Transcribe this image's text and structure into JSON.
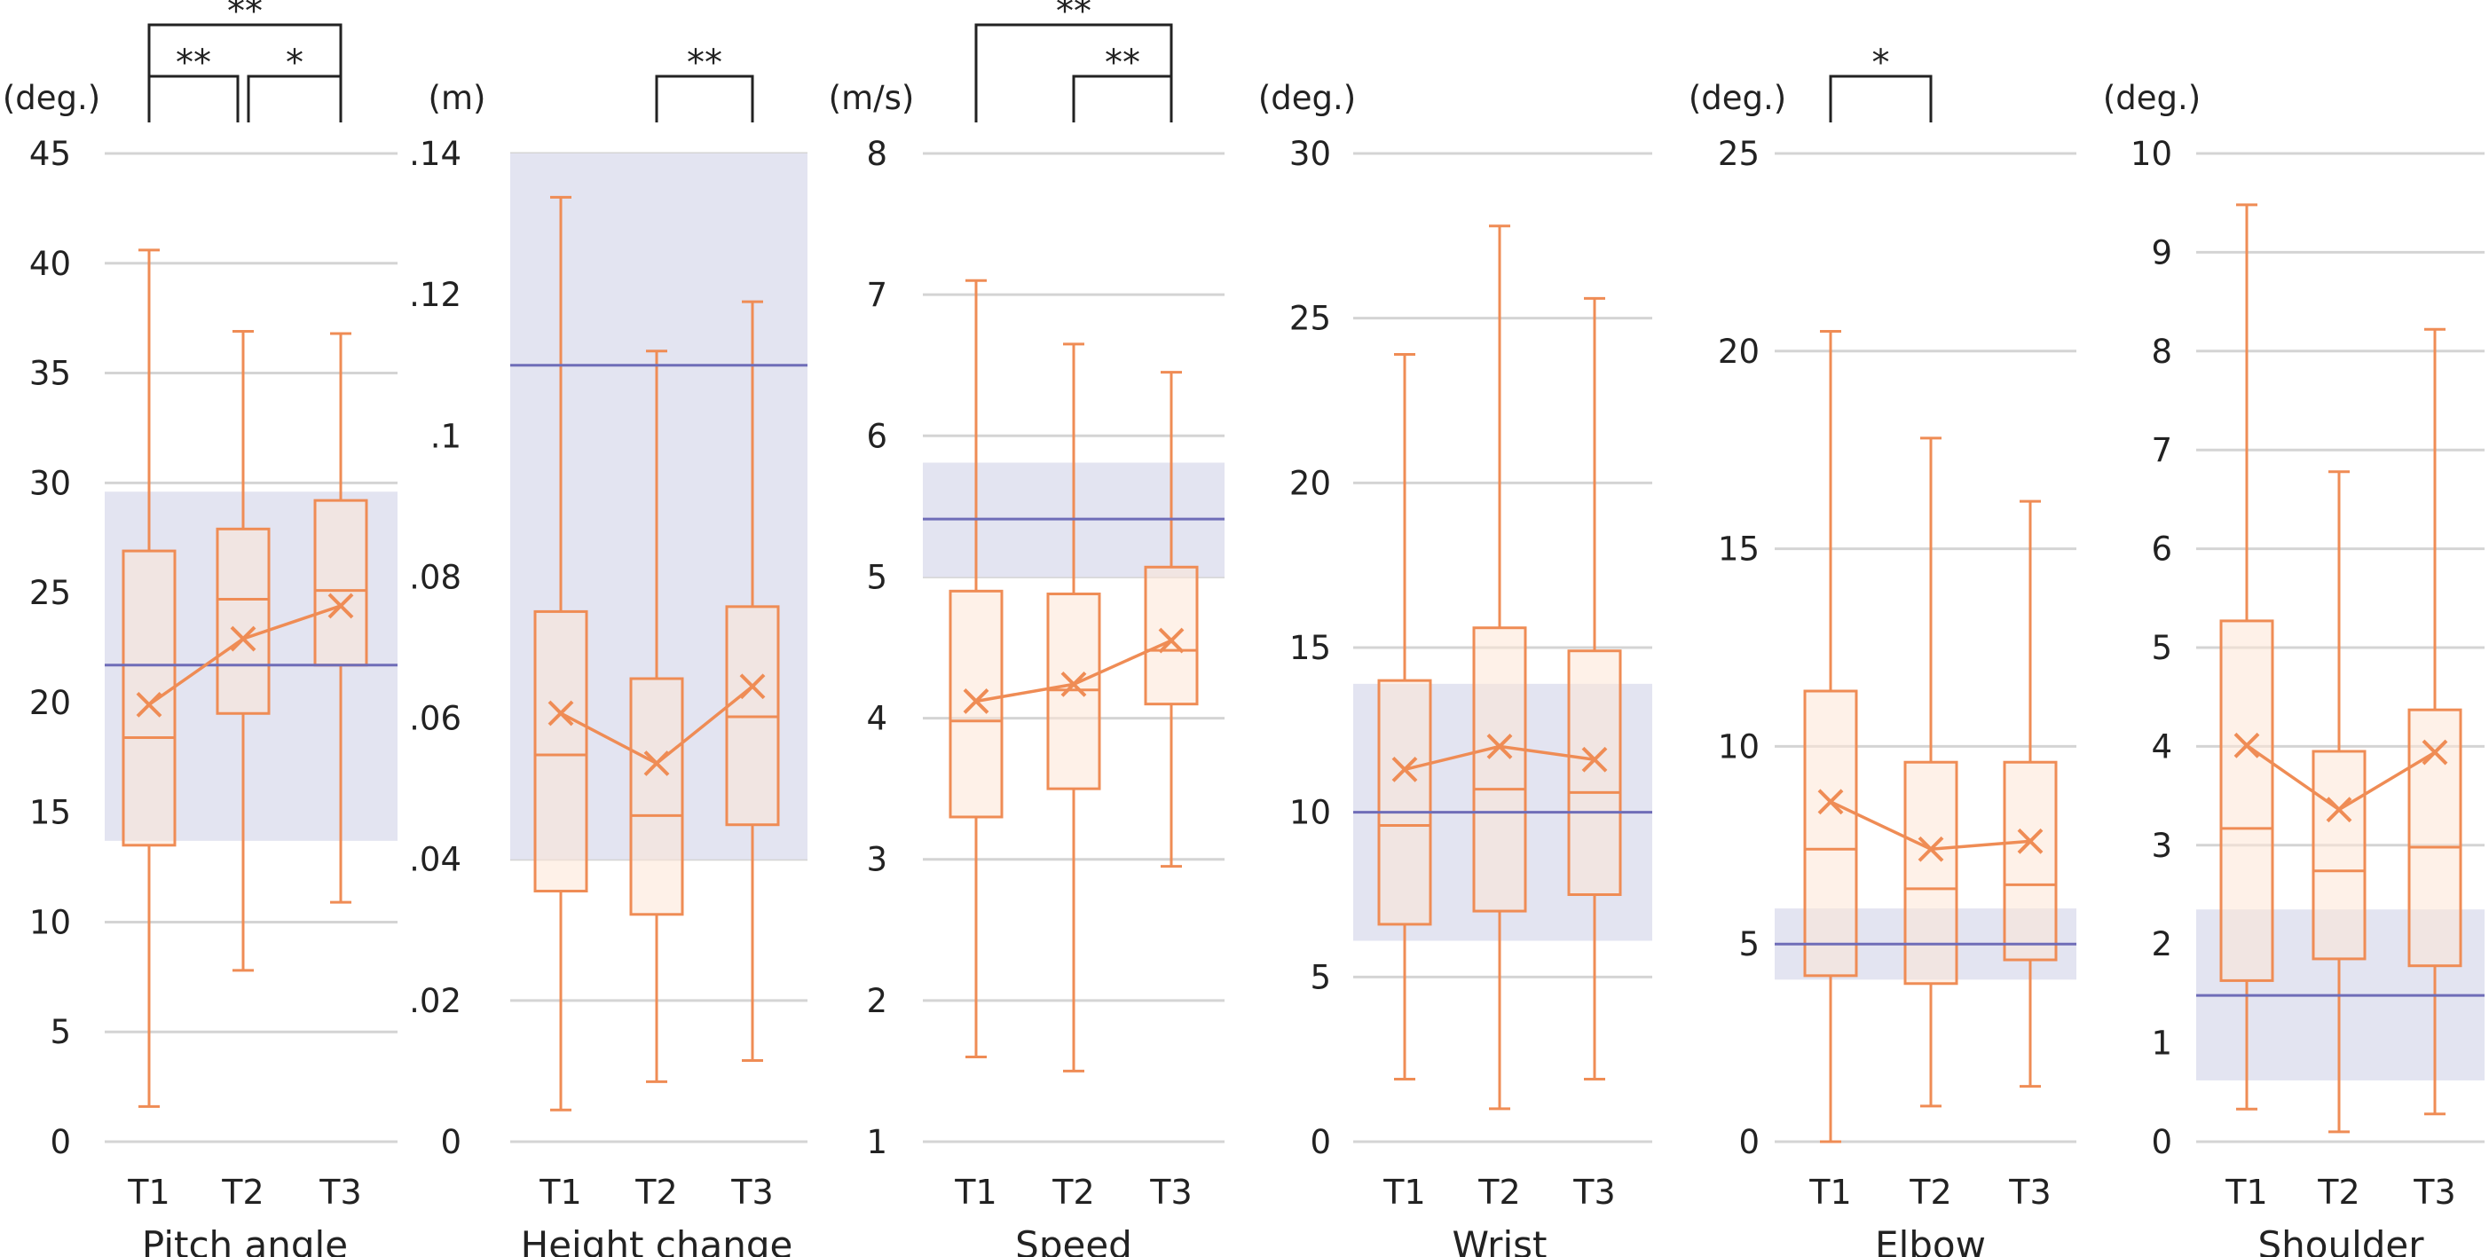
{
  "chart_data": [
    {
      "type": "box",
      "title": "Pitch angle",
      "unit": "(deg.)",
      "ylim": [
        0,
        45
      ],
      "ticks": [
        0,
        5,
        10,
        15,
        20,
        25,
        30,
        35,
        40,
        45
      ],
      "tick_labels": [
        "0",
        "5",
        "10",
        "15",
        "20",
        "25",
        "30",
        "35",
        "40",
        "45"
      ],
      "categories": [
        "T1",
        "T2",
        "T3"
      ],
      "boxes": [
        {
          "min": 1.6,
          "q1": 13.5,
          "median": 18.4,
          "q3": 26.9,
          "max": 40.6,
          "mean": 19.9
        },
        {
          "min": 7.8,
          "q1": 19.5,
          "median": 24.7,
          "q3": 27.9,
          "max": 36.9,
          "mean": 22.9
        },
        {
          "min": 10.9,
          "q1": 21.7,
          "median": 25.1,
          "q3": 29.2,
          "max": 36.8,
          "mean": 24.4
        }
      ],
      "reference": {
        "mean": 21.7,
        "low": 13.7,
        "high": 29.6
      },
      "significance": [
        {
          "from": 0,
          "to": 2,
          "label": "**"
        },
        {
          "from": 0,
          "to": 1,
          "label": "**"
        },
        {
          "from": 1,
          "to": 2,
          "label": "*"
        }
      ]
    },
    {
      "type": "box",
      "title": "Height change",
      "unit": "(m)",
      "ylim": [
        0,
        0.14
      ],
      "ticks": [
        0,
        0.02,
        0.04,
        0.06,
        0.08,
        0.1,
        0.12,
        0.14
      ],
      "tick_labels": [
        "0",
        ".02",
        ".04",
        ".06",
        ".08",
        ".1",
        ".12",
        ".14"
      ],
      "categories": [
        "T1",
        "T2",
        "T3"
      ],
      "boxes": [
        {
          "min": 0.0045,
          "q1": 0.0355,
          "median": 0.0548,
          "q3": 0.0751,
          "max": 0.1338,
          "mean": 0.0607
        },
        {
          "min": 0.0085,
          "q1": 0.0322,
          "median": 0.0462,
          "q3": 0.0656,
          "max": 0.112,
          "mean": 0.0536
        },
        {
          "min": 0.0115,
          "q1": 0.0449,
          "median": 0.0602,
          "q3": 0.0758,
          "max": 0.119,
          "mean": 0.0645
        }
      ],
      "reference": {
        "mean": 0.11,
        "low": 0.04,
        "high": 0.14
      },
      "significance": [
        {
          "from": 1,
          "to": 2,
          "label": "**"
        }
      ]
    },
    {
      "type": "box",
      "title": "Speed",
      "unit": "(m/s)",
      "ylim": [
        1,
        8
      ],
      "ticks": [
        1,
        2,
        3,
        4,
        5,
        6,
        7,
        8
      ],
      "tick_labels": [
        "1",
        "2",
        "3",
        "4",
        "5",
        "6",
        "7",
        "8"
      ],
      "categories": [
        "T1",
        "T2",
        "T3"
      ],
      "boxes": [
        {
          "min": 1.6,
          "q1": 3.3,
          "median": 3.98,
          "q3": 4.9,
          "max": 7.1,
          "mean": 4.12
        },
        {
          "min": 1.5,
          "q1": 3.5,
          "median": 4.2,
          "q3": 4.88,
          "max": 6.65,
          "mean": 4.24
        },
        {
          "min": 2.95,
          "q1": 4.1,
          "median": 4.48,
          "q3": 5.07,
          "max": 6.45,
          "mean": 4.55
        }
      ],
      "reference": {
        "mean": 5.41,
        "low": 5.0,
        "high": 5.81
      },
      "significance": [
        {
          "from": 0,
          "to": 2,
          "label": "**"
        },
        {
          "from": 1,
          "to": 2,
          "label": "**"
        }
      ]
    },
    {
      "type": "box",
      "title": "Wrist",
      "unit": "(deg.)",
      "ylim": [
        0,
        30
      ],
      "ticks": [
        0,
        5,
        10,
        15,
        20,
        25,
        30
      ],
      "tick_labels": [
        "0",
        "5",
        "10",
        "15",
        "20",
        "25",
        "30"
      ],
      "categories": [
        "T1",
        "T2",
        "T3"
      ],
      "boxes": [
        {
          "min": 1.9,
          "q1": 6.6,
          "median": 9.6,
          "q3": 14.0,
          "max": 23.9,
          "mean": 11.3
        },
        {
          "min": 1.0,
          "q1": 7.0,
          "median": 10.7,
          "q3": 15.6,
          "max": 27.8,
          "mean": 12.0
        },
        {
          "min": 1.9,
          "q1": 7.5,
          "median": 10.6,
          "q3": 14.9,
          "max": 25.6,
          "mean": 11.6
        }
      ],
      "reference": {
        "mean": 10.0,
        "low": 6.1,
        "high": 13.9
      },
      "significance": []
    },
    {
      "type": "box",
      "title": "Elbow",
      "unit": "(deg.)",
      "ylim": [
        0,
        25
      ],
      "ticks": [
        0,
        5,
        10,
        15,
        20,
        25
      ],
      "tick_labels": [
        "0",
        "5",
        "10",
        "15",
        "20",
        "25"
      ],
      "categories": [
        "T1",
        "T2",
        "T3"
      ],
      "boxes": [
        {
          "min": 0.0,
          "q1": 4.2,
          "median": 7.4,
          "q3": 11.4,
          "max": 20.5,
          "mean": 8.6
        },
        {
          "min": 0.9,
          "q1": 4.0,
          "median": 6.4,
          "q3": 9.6,
          "max": 17.8,
          "mean": 7.4
        },
        {
          "min": 1.4,
          "q1": 4.6,
          "median": 6.5,
          "q3": 9.6,
          "max": 16.2,
          "mean": 7.6
        }
      ],
      "reference": {
        "mean": 5.0,
        "low": 4.1,
        "high": 5.9
      },
      "significance": [
        {
          "from": 0,
          "to": 1,
          "label": "*"
        }
      ]
    },
    {
      "type": "box",
      "title": "Shoulder",
      "unit": "(deg.)",
      "ylim": [
        0,
        10
      ],
      "ticks": [
        0,
        1,
        2,
        3,
        4,
        5,
        6,
        7,
        8,
        9,
        10
      ],
      "tick_labels": [
        "0",
        "1",
        "2",
        "3",
        "4",
        "5",
        "6",
        "7",
        "8",
        "9",
        "10"
      ],
      "categories": [
        "T1",
        "T2",
        "T3"
      ],
      "boxes": [
        {
          "min": 0.33,
          "q1": 1.63,
          "median": 3.17,
          "q3": 5.27,
          "max": 9.48,
          "mean": 4.01
        },
        {
          "min": 0.1,
          "q1": 1.85,
          "median": 2.74,
          "q3": 3.95,
          "max": 6.78,
          "mean": 3.36
        },
        {
          "min": 0.28,
          "q1": 1.78,
          "median": 2.98,
          "q3": 4.37,
          "max": 8.22,
          "mean": 3.94
        }
      ],
      "reference": {
        "mean": 1.48,
        "low": 0.62,
        "high": 2.35
      },
      "significance": []
    }
  ],
  "colors": {
    "box_stroke": "#ef8c55",
    "box_fill": "#fde6d6",
    "band_fill": "#e3e4f1",
    "reference_line": "#6f6db8",
    "grid": "#d4d4d4",
    "bracket": "#222222",
    "text": "#222222"
  }
}
